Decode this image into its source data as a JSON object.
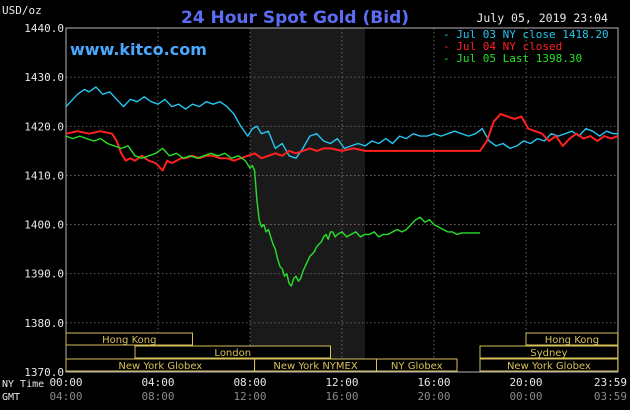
{
  "header": {
    "title": "24 Hour Spot Gold (Bid)",
    "website": "www.kitco.com",
    "unit": "USD/oz",
    "datetime": "July 05, 2019 23:04"
  },
  "time_axis": {
    "ny_label": "NY Time",
    "gmt_label": "GMT",
    "ny_ticks": [
      "00:00",
      "04:00",
      "08:00",
      "12:00",
      "16:00",
      "20:00",
      "23:59"
    ],
    "gmt_ticks": [
      "04:00",
      "08:00",
      "12:00",
      "16:00",
      "20:00",
      "00:00",
      "03:59"
    ]
  },
  "sessions": [
    {
      "label": "Hong Kong",
      "start": 0.0,
      "end": 5.5,
      "row": 0
    },
    {
      "label": "London",
      "start": 3.0,
      "end": 11.5,
      "row": 1
    },
    {
      "label": "New York Globex",
      "start": 0.0,
      "end": 8.2,
      "row": 2
    },
    {
      "label": "New York NYMEX",
      "start": 8.2,
      "end": 13.5,
      "row": 2
    },
    {
      "label": "NY Globex",
      "start": 13.5,
      "end": 17.0,
      "row": 2
    },
    {
      "label": "Hong Kong",
      "start": 20.0,
      "end": 23.99,
      "row": 0
    },
    {
      "label": "Sydney",
      "start": 18.0,
      "end": 23.99,
      "row": 1
    },
    {
      "label": "New York Globex",
      "start": 18.0,
      "end": 23.99,
      "row": 2
    }
  ],
  "chart_data": {
    "type": "line",
    "title": "24 Hour Spot Gold (Bid)",
    "ylabel": "USD/oz",
    "ylim": [
      1370,
      1440
    ],
    "yticks": [
      1370,
      1380,
      1390,
      1400,
      1410,
      1420,
      1430,
      1440
    ],
    "xlim": [
      0,
      24
    ],
    "grid": true,
    "legend_position": "top-right",
    "shaded_region": [
      8.0,
      13.0
    ],
    "series": [
      {
        "name": "Jul 03 NY close 1418.20",
        "color": "#25c6f0",
        "x": [
          0,
          0.2,
          0.5,
          0.8,
          1.0,
          1.3,
          1.6,
          1.9,
          2.2,
          2.5,
          2.8,
          3.1,
          3.4,
          3.7,
          4.0,
          4.3,
          4.6,
          4.9,
          5.2,
          5.5,
          5.8,
          6.1,
          6.4,
          6.7,
          7.0,
          7.3,
          7.6,
          7.9,
          8.1,
          8.3,
          8.5,
          8.8,
          9.1,
          9.4,
          9.7,
          10.0,
          10.3,
          10.6,
          10.9,
          11.2,
          11.5,
          11.8,
          12.1,
          12.4,
          12.7,
          13.0,
          13.3,
          13.6,
          13.9,
          14.2,
          14.5,
          14.8,
          15.1,
          15.4,
          15.7,
          16.0,
          16.3,
          16.6,
          16.9,
          17.2,
          17.5,
          17.8,
          18.1,
          18.4,
          18.7,
          19.0,
          19.3,
          19.6,
          19.9,
          20.2,
          20.5,
          20.8,
          21.1,
          21.4,
          21.7,
          22.0,
          22.3,
          22.6,
          22.9,
          23.2,
          23.5,
          23.8,
          23.99
        ],
        "values": [
          1424.0,
          1425.0,
          1426.5,
          1427.5,
          1427.0,
          1428.0,
          1426.5,
          1427.0,
          1425.5,
          1424.0,
          1425.5,
          1425.0,
          1426.0,
          1425.0,
          1424.5,
          1425.5,
          1424.0,
          1424.5,
          1423.5,
          1424.5,
          1424.0,
          1425.0,
          1424.5,
          1425.0,
          1424.0,
          1422.5,
          1420.0,
          1418.0,
          1419.5,
          1420.0,
          1418.5,
          1419.0,
          1415.5,
          1416.5,
          1414.0,
          1413.5,
          1415.5,
          1418.0,
          1418.5,
          1417.0,
          1416.5,
          1417.5,
          1415.5,
          1416.0,
          1416.5,
          1416.0,
          1417.0,
          1416.5,
          1417.5,
          1416.5,
          1418.0,
          1417.5,
          1418.5,
          1418.0,
          1418.0,
          1418.5,
          1418.0,
          1418.5,
          1419.0,
          1418.5,
          1418.0,
          1418.5,
          1419.5,
          1417.0,
          1416.0,
          1416.5,
          1415.5,
          1416.0,
          1417.0,
          1416.5,
          1417.5,
          1417.0,
          1418.5,
          1418.0,
          1418.5,
          1419.0,
          1418.0,
          1419.5,
          1419.0,
          1418.0,
          1419.0,
          1418.5,
          1418.5
        ]
      },
      {
        "name": "Jul 04 NY closed",
        "color": "#ff2020",
        "x": [
          0,
          0.5,
          1.0,
          1.5,
          2.0,
          2.2,
          2.4,
          2.6,
          2.8,
          3.0,
          3.3,
          3.6,
          3.9,
          4.2,
          4.4,
          4.6,
          4.8,
          5.0,
          5.2,
          5.5,
          5.8,
          6.1,
          6.4,
          6.7,
          7.0,
          7.3,
          7.6,
          7.9,
          8.2,
          8.5,
          8.8,
          9.1,
          9.4,
          9.7,
          10.0,
          10.3,
          10.6,
          10.9,
          11.2,
          11.5,
          12.0,
          12.5,
          13.0,
          14.0,
          15.0,
          16.0,
          17.0,
          17.5,
          18.0,
          18.3,
          18.6,
          18.9,
          19.2,
          19.5,
          19.8,
          20.1,
          20.4,
          20.7,
          21.0,
          21.3,
          21.6,
          21.9,
          22.2,
          22.5,
          22.8,
          23.1,
          23.4,
          23.7,
          23.99
        ],
        "values": [
          1418.5,
          1419.0,
          1418.5,
          1419.0,
          1418.5,
          1417.0,
          1414.5,
          1413.0,
          1413.5,
          1413.0,
          1414.0,
          1413.0,
          1412.5,
          1411.0,
          1413.0,
          1412.5,
          1413.0,
          1413.5,
          1413.5,
          1414.0,
          1413.5,
          1414.0,
          1414.0,
          1413.5,
          1413.5,
          1413.0,
          1413.5,
          1414.0,
          1414.5,
          1413.5,
          1414.0,
          1414.5,
          1414.0,
          1415.0,
          1414.5,
          1415.0,
          1415.5,
          1415.0,
          1415.5,
          1415.5,
          1415.0,
          1415.5,
          1415.0,
          1415.0,
          1415.0,
          1415.0,
          1415.0,
          1415.0,
          1415.0,
          1417.0,
          1421.0,
          1422.5,
          1422.0,
          1421.5,
          1422.0,
          1419.5,
          1419.0,
          1418.5,
          1417.0,
          1418.0,
          1416.0,
          1417.5,
          1418.5,
          1417.5,
          1418.0,
          1417.0,
          1418.0,
          1417.5,
          1418.0
        ]
      },
      {
        "name": "Jul 05 Last 1398.30",
        "color": "#28e028",
        "x": [
          0,
          0.3,
          0.6,
          0.9,
          1.2,
          1.5,
          1.8,
          2.1,
          2.4,
          2.7,
          3.0,
          3.3,
          3.6,
          3.9,
          4.2,
          4.5,
          4.8,
          5.1,
          5.4,
          5.7,
          6.0,
          6.3,
          6.6,
          6.9,
          7.2,
          7.5,
          7.8,
          8.0,
          8.1,
          8.2,
          8.3,
          8.4,
          8.5,
          8.6,
          8.7,
          8.8,
          8.9,
          9.0,
          9.1,
          9.2,
          9.3,
          9.4,
          9.5,
          9.6,
          9.7,
          9.8,
          9.9,
          10.0,
          10.1,
          10.2,
          10.3,
          10.4,
          10.5,
          10.6,
          10.7,
          10.8,
          10.9,
          11.0,
          11.1,
          11.2,
          11.3,
          11.4,
          11.5,
          11.6,
          11.7,
          11.8,
          12.0,
          12.2,
          12.4,
          12.6,
          12.8,
          13.0,
          13.2,
          13.4,
          13.6,
          13.8,
          14.0,
          14.2,
          14.4,
          14.6,
          14.8,
          15.0,
          15.2,
          15.4,
          15.6,
          15.8,
          16.0,
          16.2,
          16.4,
          16.6,
          16.8,
          17.0,
          17.2,
          17.4,
          17.6,
          17.8,
          18.0
        ],
        "values": [
          1418.0,
          1417.5,
          1418.0,
          1417.5,
          1417.0,
          1417.5,
          1416.5,
          1416.0,
          1415.5,
          1416.0,
          1414.0,
          1413.5,
          1414.0,
          1414.5,
          1415.5,
          1414.0,
          1414.5,
          1413.5,
          1414.0,
          1413.5,
          1414.0,
          1414.5,
          1414.0,
          1414.5,
          1413.5,
          1414.0,
          1413.0,
          1411.5,
          1412.0,
          1411.0,
          1405.0,
          1401.0,
          1399.5,
          1400.0,
          1398.5,
          1399.0,
          1397.5,
          1396.0,
          1395.0,
          1393.0,
          1391.5,
          1391.0,
          1389.5,
          1390.0,
          1388.0,
          1387.5,
          1389.0,
          1389.5,
          1388.5,
          1389.0,
          1390.5,
          1391.5,
          1392.5,
          1393.5,
          1394.0,
          1394.5,
          1395.5,
          1396.0,
          1396.5,
          1397.5,
          1398.0,
          1397.0,
          1398.5,
          1398.5,
          1397.5,
          1398.0,
          1398.5,
          1397.5,
          1398.0,
          1398.5,
          1397.5,
          1398.0,
          1398.0,
          1398.5,
          1397.5,
          1398.0,
          1398.0,
          1398.5,
          1399.0,
          1398.5,
          1399.0,
          1400.0,
          1401.0,
          1401.5,
          1400.5,
          1401.0,
          1400.0,
          1399.5,
          1399.0,
          1398.5,
          1398.5,
          1398.0,
          1398.3,
          1398.3,
          1398.3,
          1398.3,
          1398.3
        ]
      }
    ]
  }
}
